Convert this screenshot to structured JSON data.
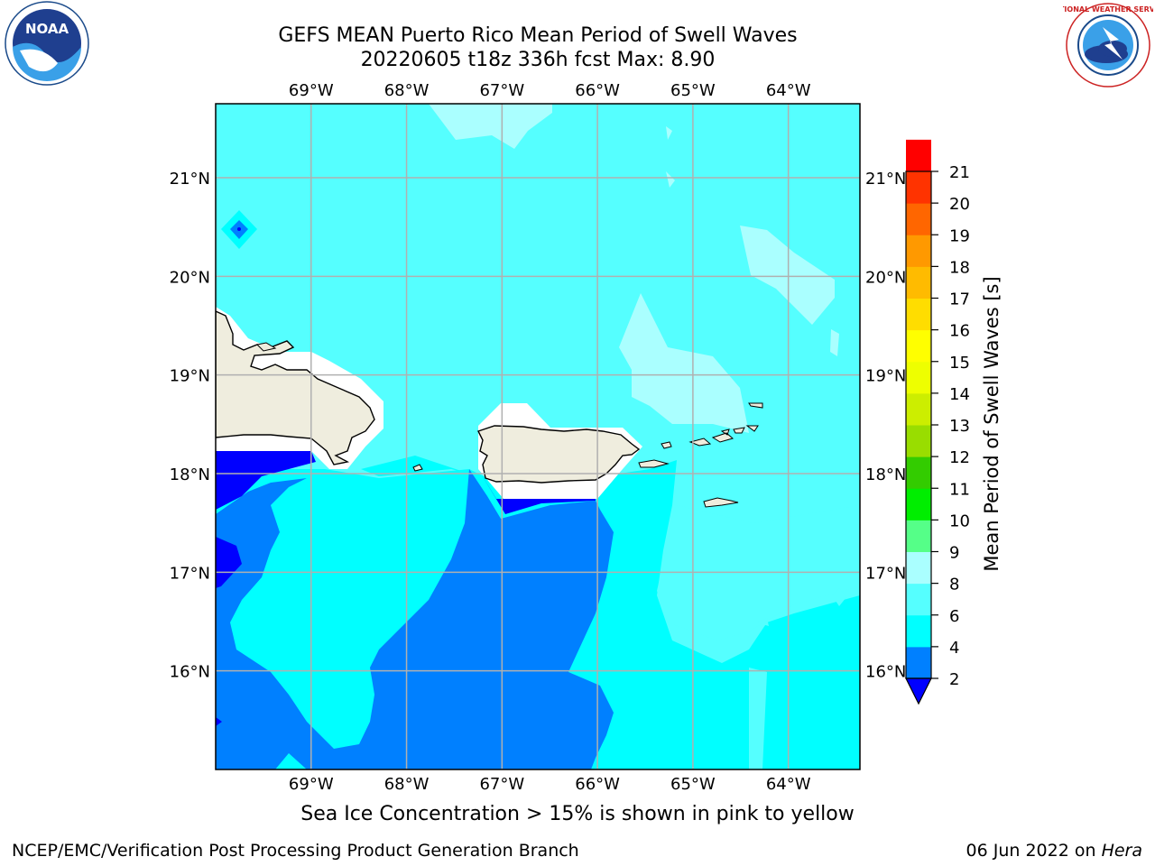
{
  "header": {
    "title_line1": "GEFS MEAN Puerto Rico Mean Period of Swell Waves",
    "title_line2": "20220605 t18z 336h fcst   Max: 8.90"
  },
  "logos": {
    "left": "noara-logo",
    "left_text": "NOAA",
    "right": "nws-logo",
    "right_text": "NATIONAL WEATHER SERVICE"
  },
  "map": {
    "lon_labels": [
      "69°W",
      "68°W",
      "67°W",
      "66°W",
      "65°W",
      "64°W"
    ],
    "lat_labels": [
      "21°N",
      "20°N",
      "19°N",
      "18°N",
      "17°N",
      "16°N"
    ],
    "lon_range": [
      -70.0,
      -63.25
    ],
    "lat_range": [
      15.0,
      21.75
    ],
    "land_color": "#efedde",
    "grid_color": "#b0b0b0"
  },
  "colorbar": {
    "label": "Mean Period of Swell Waves [s]",
    "ticks": [
      "2",
      "4",
      "6",
      "8",
      "9",
      "10",
      "11",
      "12",
      "13",
      "14",
      "15",
      "16",
      "17",
      "18",
      "19",
      "20",
      "21"
    ],
    "colors": [
      "#0080ff",
      "#00ffff",
      "#55ffff",
      "#aaffff",
      "#55ff88",
      "#00ee00",
      "#33cc00",
      "#99dd00",
      "#ccee00",
      "#eeff00",
      "#ffff00",
      "#ffdd00",
      "#ffbb00",
      "#ff9900",
      "#ff6600",
      "#ff3300",
      "#ff0000"
    ],
    "under_color": "#0000ff"
  },
  "note": "Sea Ice Concentration > 15% is shown in pink to yellow",
  "footer": {
    "left": "NCEP/EMC/Verification Post Processing Product Generation Branch",
    "right_date": "06 Jun 2022 on ",
    "right_host": "Hera"
  }
}
